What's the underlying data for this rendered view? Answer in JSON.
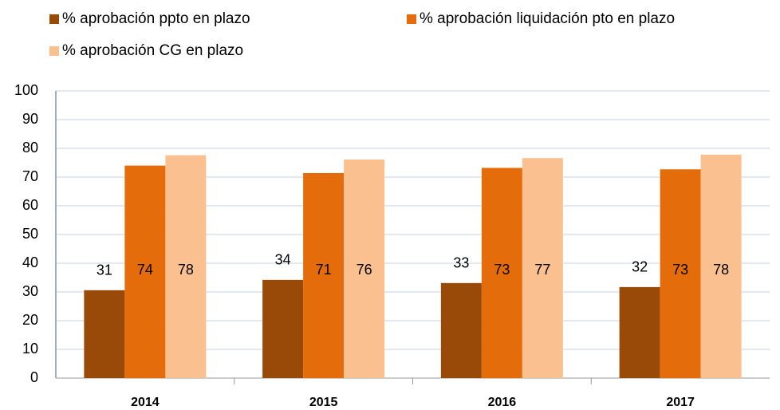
{
  "chart_data": {
    "type": "bar",
    "categories": [
      "2014",
      "2015",
      "2016",
      "2017"
    ],
    "series": [
      {
        "name": "% aprobación ppto en plazo",
        "color": "#9a4a08",
        "values": [
          30.6,
          34.2,
          33.1,
          31.7
        ],
        "value_labels": [
          "31",
          "34",
          "33",
          "32"
        ]
      },
      {
        "name": "% aprobación liquidación pto en plazo",
        "color": "#e46c0a",
        "values": [
          74.0,
          71.4,
          73.2,
          72.7
        ],
        "value_labels": [
          "74",
          "71",
          "73",
          "73"
        ]
      },
      {
        "name": "% aprobación CG en plazo",
        "color": "#fac090",
        "values": [
          77.6,
          76.1,
          76.6,
          77.8
        ],
        "value_labels": [
          "78",
          "76",
          "77",
          "78"
        ]
      }
    ],
    "ylim": [
      0,
      100
    ],
    "yticks": [
      0,
      10,
      20,
      30,
      40,
      50,
      60,
      70,
      80,
      90,
      100
    ],
    "grid": true
  }
}
